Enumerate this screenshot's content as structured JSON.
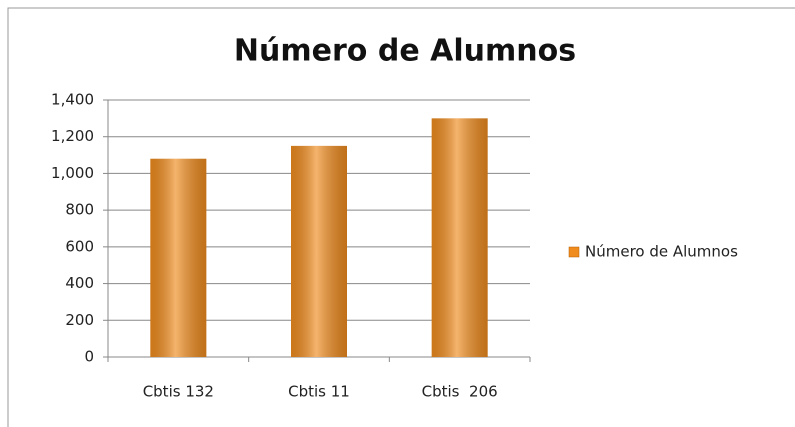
{
  "chart_data": {
    "type": "bar",
    "title": "Número de Alumnos",
    "categories": [
      "Cbtis 132",
      "Cbtis 11",
      "Cbtis  206"
    ],
    "series": [
      {
        "name": "Número de Alumnos",
        "color": "#f08c1e",
        "values": [
          1080,
          1150,
          1300
        ]
      }
    ],
    "ylim": [
      0,
      1400
    ],
    "yticks": [
      0,
      200,
      400,
      600,
      800,
      {
        "value": 1000,
        "label": "1,000"
      },
      {
        "value": 1200,
        "label": "1,200"
      },
      {
        "value": 1400,
        "label": "1,400"
      }
    ],
    "grid": true,
    "legend": "right"
  }
}
